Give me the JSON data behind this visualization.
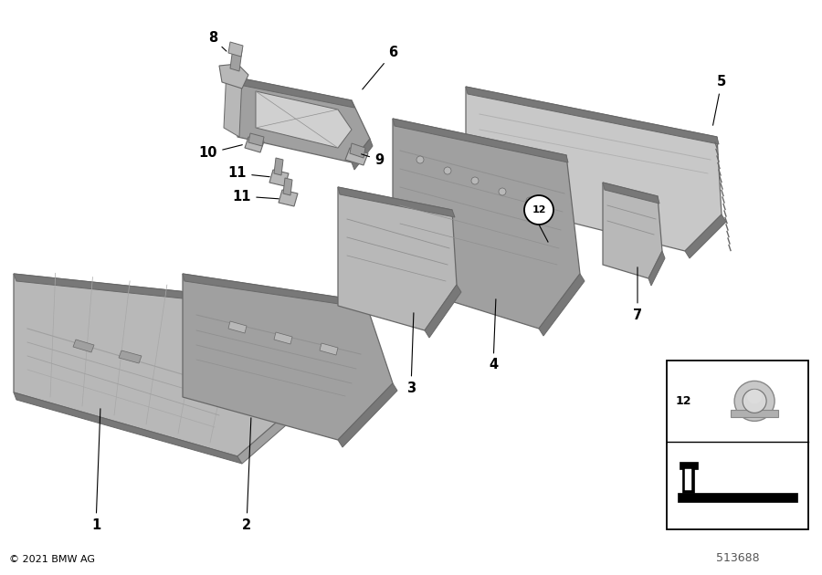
{
  "bg_color": "#ffffff",
  "fig_width": 9.0,
  "fig_height": 6.3,
  "copyright": "© 2021 BMW AG",
  "diagram_number": "513688",
  "gray1": "#b8b8b8",
  "gray2": "#a0a0a0",
  "gray3": "#c8c8c8",
  "dark": "#787878",
  "darker": "#606060",
  "edge": "#686868",
  "line_color": "#000000",
  "label_fontsize": 10.5
}
